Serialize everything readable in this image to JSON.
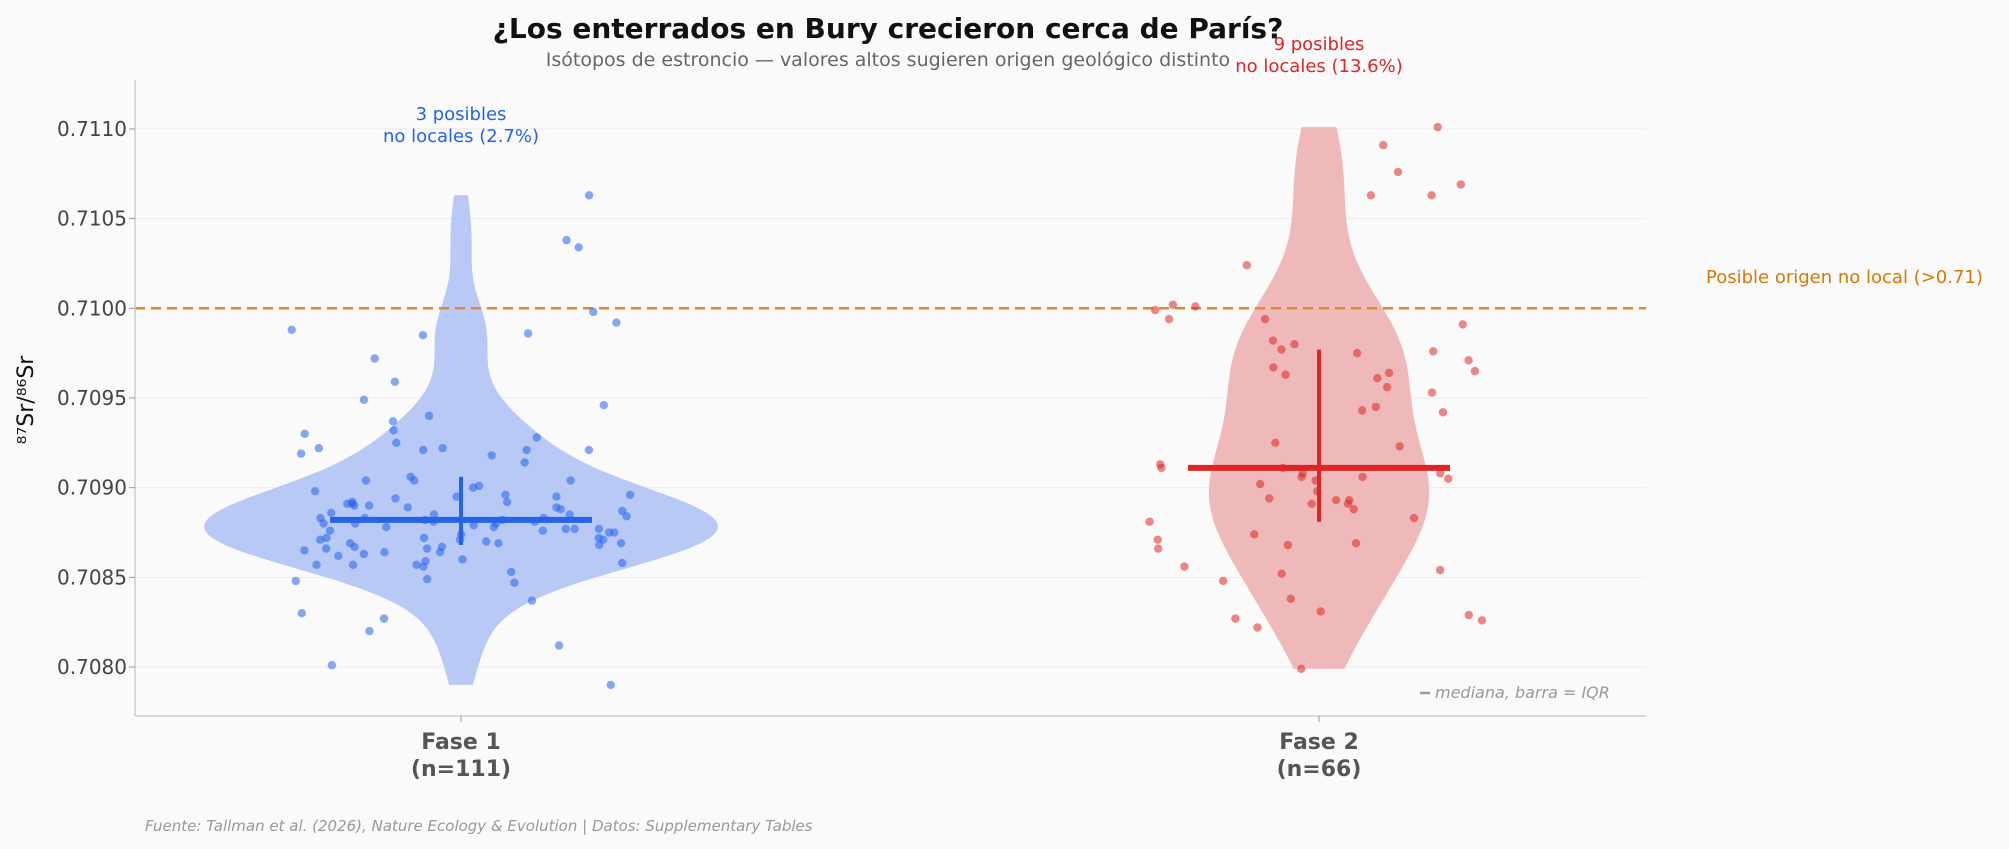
{
  "colors": {
    "fase1": "#2563eb",
    "fase1_violin": "#b8c9f5",
    "fase2": "#dc2626",
    "fase2_violin": "#f0b9b9",
    "threshold": "#e08a2a",
    "threshold_text": "#d97706"
  },
  "chart_data": {
    "type": "violin",
    "title": "¿Los enterrados en Bury crecieron cerca de París?",
    "subtitle": "Isótopos de estroncio — valores altos sugieren origen geológico distinto",
    "ylabel": "⁸⁷Sr/⁸⁶Sr",
    "ylim": [
      0.70775,
      0.71118
    ],
    "yticks": [
      "0.7080",
      "0.7085",
      "0.7090",
      "0.7095",
      "0.7100",
      "0.7105",
      "0.7110"
    ],
    "threshold": {
      "value": 0.71,
      "label": "Posible origen no local (>0.71)"
    },
    "legend_note": "mediana, barra = IQR",
    "source": "Fuente: Tallman et al. (2026), Nature Ecology & Evolution | Datos: Supplementary Tables",
    "groups": [
      {
        "name": "Fase 1",
        "n_label": "(n=111)",
        "n": 111,
        "median": 0.70882,
        "q1": 0.70868,
        "q3": 0.70906,
        "nonlocal_line1": "3 posibles",
        "nonlocal_line2": "no locales (2.7%)",
        "min": 0.7079,
        "max": 0.71063,
        "points": [
          0.70998,
          0.70946,
          0.70898,
          0.70882,
          0.70877,
          0.70862,
          0.70857,
          0.70874,
          0.70882,
          0.7082,
          0.70801,
          0.70875,
          0.70859,
          0.70857,
          0.70871,
          0.70878,
          0.70866,
          0.70928,
          0.70932,
          0.70937,
          0.70919,
          0.70921,
          0.7088,
          0.70877,
          0.70885,
          0.7089,
          0.70901,
          0.70906,
          0.70837,
          0.7088,
          0.70871,
          0.70869,
          0.70866,
          0.7093,
          0.70896,
          0.70904,
          0.70896,
          0.70878,
          0.70872,
          0.70864,
          0.70985,
          0.70922,
          0.70921,
          0.70812,
          0.70849,
          0.70856,
          0.70863,
          0.70867,
          0.70921,
          0.70922,
          0.70904,
          0.70881,
          0.70877,
          0.70871,
          0.71063,
          0.71038,
          0.70986,
          0.70918,
          0.7086,
          0.70858,
          0.70827,
          0.70894,
          0.70891,
          0.70889,
          0.70892,
          0.70914,
          0.70883,
          0.70868,
          0.70992,
          0.70925,
          0.709,
          0.70872,
          0.70865,
          0.7079,
          0.7094,
          0.70904,
          0.70879,
          0.70881,
          0.70857,
          0.70883,
          0.71034,
          0.70949,
          0.70887,
          0.70872,
          0.70847,
          0.70853,
          0.70869,
          0.70885,
          0.70891,
          0.70895,
          0.70886,
          0.70884,
          0.7083,
          0.70869,
          0.70895,
          0.70889,
          0.70888,
          0.7088,
          0.70867,
          0.70988,
          0.7089,
          0.70864,
          0.70848,
          0.70959,
          0.70892,
          0.70972,
          0.70876,
          0.70883,
          0.70876,
          0.70875,
          0.7087
        ]
      },
      {
        "name": "Fase 2",
        "n_label": "(n=66)",
        "n": 66,
        "median": 0.70911,
        "q1": 0.70881,
        "q3": 0.70977,
        "nonlocal_line1": "9 posibles",
        "nonlocal_line2": "no locales (13.6%)",
        "min": 0.70799,
        "max": 0.71101,
        "points": [
          0.70911,
          0.70894,
          0.70994,
          0.7098,
          0.70982,
          0.70965,
          0.70964,
          0.70963,
          0.71091,
          0.71024,
          0.70905,
          0.70945,
          0.70893,
          0.70848,
          0.70874,
          0.70866,
          0.71063,
          0.70913,
          0.70999,
          0.71001,
          0.70827,
          0.70826,
          0.70893,
          0.70977,
          0.70902,
          0.70904,
          0.70854,
          0.70891,
          0.70925,
          0.71002,
          0.71101,
          0.70975,
          0.70906,
          0.70908,
          0.70906,
          0.70868,
          0.71069,
          0.70976,
          0.70967,
          0.70799,
          0.71063,
          0.70923,
          0.70942,
          0.70898,
          0.70971,
          0.70891,
          0.70883,
          0.70852,
          0.70871,
          0.70991,
          0.70831,
          0.70888,
          0.70994,
          0.70956,
          0.71076,
          0.70908,
          0.70911,
          0.70953,
          0.70961,
          0.70881,
          0.70822,
          0.70838,
          0.70829,
          0.70869,
          0.70856,
          0.70943
        ]
      }
    ]
  }
}
